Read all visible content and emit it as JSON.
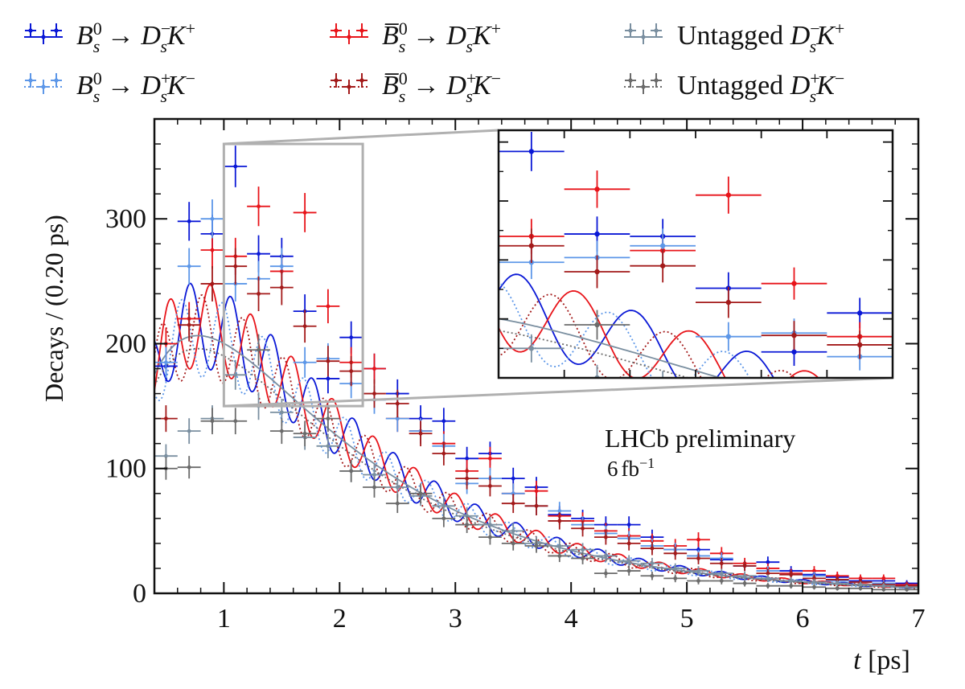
{
  "legend": {
    "entries": [
      {
        "id": "tag_bs_dmkp",
        "html": "B<tspan baseline-shift='super' font-size='22'>0</tspan><tspan dx='-11' baseline-shift='sub' font-size='22'>s</tspan> → D<tspan baseline-shift='super' font-size='22'>−</tspan><tspan dx='-11' baseline-shift='sub' font-size='22'>s</tspan>K<tspan baseline-shift='super' font-size='22'>+</tspan>",
        "color": "#0a18d6",
        "dotted": false
      },
      {
        "id": "tag_bsbar_dmkp",
        "html": "",
        "color": "#e8141a",
        "dotted": false
      },
      {
        "id": "untag_dmkp",
        "html": "",
        "color": "#7a8fa0",
        "dotted": false
      },
      {
        "id": "tag_bs_dpkm",
        "html": "",
        "color": "#5d97e8",
        "dotted": true
      },
      {
        "id": "tag_bsbar_dpkm",
        "html": "",
        "color": "#a31a1a",
        "dotted": true
      },
      {
        "id": "untag_dpkm",
        "html": "",
        "color": "#6b6b6b",
        "dotted": true
      }
    ],
    "texts": {
      "untagged": "Untagged"
    }
  },
  "annotation": {
    "line1": "LHCb preliminary",
    "line2_num": "6",
    "line2_unit": "fb",
    "line2_exp": "−1"
  },
  "colors": {
    "blue": "#0a18d6",
    "lightblue": "#5d97e8",
    "red": "#e8141a",
    "darkred": "#a31a1a",
    "slate": "#7a8fa0",
    "gray": "#6b6b6b",
    "inset_frame": "#b0b0b0"
  },
  "chart_data": {
    "type": "scatter",
    "xlabel_var": "t",
    "xlabel_unit": "[ps]",
    "ylabel": "Decays / (0.20 ps)",
    "xlim": [
      0.4,
      7.0
    ],
    "ylim": [
      0,
      380
    ],
    "xticks": [
      1,
      2,
      3,
      4,
      5,
      6,
      7
    ],
    "yticks": [
      0,
      100,
      200,
      300
    ],
    "inset": {
      "xlim": [
        1.0,
        2.2
      ],
      "ylim": [
        150,
        360
      ]
    },
    "bin_halfwidth": 0.1,
    "series": [
      {
        "key": "bs_dmkp",
        "color": "#0a18d6",
        "style": "solid",
        "points": [
          [
            0.5,
            182
          ],
          [
            0.7,
            298
          ],
          [
            0.9,
            288
          ],
          [
            1.1,
            342
          ],
          [
            1.3,
            272
          ],
          [
            1.5,
            270
          ],
          [
            1.7,
            226
          ],
          [
            1.9,
            172
          ],
          [
            2.1,
            205
          ],
          [
            2.3,
            180
          ],
          [
            2.5,
            160
          ],
          [
            2.7,
            140
          ],
          [
            2.9,
            138
          ],
          [
            3.1,
            108
          ],
          [
            3.3,
            112
          ],
          [
            3.5,
            92
          ],
          [
            3.7,
            85
          ],
          [
            3.9,
            63
          ],
          [
            4.1,
            60
          ],
          [
            4.3,
            55
          ],
          [
            4.5,
            55
          ],
          [
            4.7,
            45
          ],
          [
            4.9,
            35
          ],
          [
            5.1,
            35
          ],
          [
            5.3,
            27
          ],
          [
            5.5,
            22
          ],
          [
            5.7,
            25
          ],
          [
            5.9,
            18
          ],
          [
            6.1,
            15
          ],
          [
            6.3,
            13
          ],
          [
            6.5,
            10
          ],
          [
            6.7,
            10
          ],
          [
            6.9,
            8
          ]
        ]
      },
      {
        "key": "bsbar_dmkp",
        "color": "#e8141a",
        "style": "solid",
        "points": [
          [
            0.5,
            200
          ],
          [
            0.7,
            220
          ],
          [
            0.9,
            275
          ],
          [
            1.1,
            270
          ],
          [
            1.3,
            310
          ],
          [
            1.5,
            258
          ],
          [
            1.7,
            305
          ],
          [
            1.9,
            230
          ],
          [
            2.1,
            185
          ],
          [
            2.3,
            180
          ],
          [
            2.5,
            140
          ],
          [
            2.7,
            130
          ],
          [
            2.9,
            120
          ],
          [
            3.1,
            98
          ],
          [
            3.3,
            108
          ],
          [
            3.5,
            80
          ],
          [
            3.7,
            82
          ],
          [
            3.9,
            62
          ],
          [
            4.1,
            58
          ],
          [
            4.3,
            50
          ],
          [
            4.5,
            46
          ],
          [
            4.7,
            42
          ],
          [
            4.9,
            38
          ],
          [
            5.1,
            43
          ],
          [
            5.3,
            32
          ],
          [
            5.5,
            24
          ],
          [
            5.7,
            20
          ],
          [
            5.9,
            16
          ],
          [
            6.1,
            18
          ],
          [
            6.3,
            14
          ],
          [
            6.5,
            12
          ],
          [
            6.7,
            12
          ],
          [
            6.9,
            7
          ]
        ]
      },
      {
        "key": "bs_dpkm",
        "color": "#5d97e8",
        "style": "dotted",
        "points": [
          [
            0.5,
            185
          ],
          [
            0.7,
            262
          ],
          [
            0.9,
            300
          ],
          [
            1.1,
            248
          ],
          [
            1.3,
            252
          ],
          [
            1.5,
            262
          ],
          [
            1.7,
            185
          ],
          [
            1.9,
            188
          ],
          [
            2.1,
            168
          ],
          [
            2.3,
            155
          ],
          [
            2.5,
            140
          ],
          [
            2.7,
            130
          ],
          [
            2.9,
            118
          ],
          [
            3.1,
            88
          ],
          [
            3.3,
            92
          ],
          [
            3.5,
            80
          ],
          [
            3.7,
            70
          ],
          [
            3.9,
            66
          ],
          [
            4.1,
            55
          ],
          [
            4.3,
            48
          ],
          [
            4.5,
            44
          ],
          [
            4.7,
            38
          ],
          [
            4.9,
            35
          ],
          [
            5.1,
            30
          ],
          [
            5.3,
            28
          ],
          [
            5.5,
            22
          ],
          [
            5.7,
            18
          ],
          [
            5.9,
            15
          ],
          [
            6.1,
            14
          ],
          [
            6.3,
            10
          ],
          [
            6.5,
            9
          ],
          [
            6.7,
            8
          ],
          [
            6.9,
            6
          ]
        ]
      },
      {
        "key": "bsbar_dpkm",
        "color": "#a31a1a",
        "style": "dotted",
        "points": [
          [
            0.5,
            140
          ],
          [
            0.7,
            215
          ],
          [
            0.9,
            248
          ],
          [
            1.1,
            262
          ],
          [
            1.3,
            240
          ],
          [
            1.5,
            245
          ],
          [
            1.7,
            214
          ],
          [
            1.9,
            186
          ],
          [
            2.1,
            178
          ],
          [
            2.3,
            160
          ],
          [
            2.5,
            152
          ],
          [
            2.7,
            128
          ],
          [
            2.9,
            112
          ],
          [
            3.1,
            92
          ],
          [
            3.3,
            86
          ],
          [
            3.5,
            72
          ],
          [
            3.7,
            70
          ],
          [
            3.9,
            58
          ],
          [
            4.1,
            52
          ],
          [
            4.3,
            45
          ],
          [
            4.5,
            40
          ],
          [
            4.7,
            36
          ],
          [
            4.9,
            32
          ],
          [
            5.1,
            28
          ],
          [
            5.3,
            24
          ],
          [
            5.5,
            22
          ],
          [
            5.7,
            16
          ],
          [
            5.9,
            15
          ],
          [
            6.1,
            12
          ],
          [
            6.3,
            11
          ],
          [
            6.5,
            9
          ],
          [
            6.7,
            7
          ],
          [
            6.9,
            6
          ]
        ]
      },
      {
        "key": "untag_dmkp",
        "color": "#7a8fa0",
        "style": "solid",
        "points": [
          [
            0.5,
            110
          ],
          [
            0.7,
            130
          ],
          [
            0.9,
            140
          ],
          [
            1.1,
            175
          ],
          [
            1.3,
            150
          ],
          [
            1.5,
            145
          ],
          [
            1.7,
            125
          ],
          [
            1.9,
            118
          ],
          [
            2.1,
            98
          ],
          [
            2.3,
            95
          ],
          [
            2.5,
            85
          ],
          [
            2.7,
            78
          ],
          [
            2.9,
            70
          ],
          [
            3.1,
            62
          ],
          [
            3.3,
            55
          ],
          [
            3.5,
            50
          ],
          [
            3.7,
            40
          ],
          [
            3.9,
            38
          ],
          [
            4.1,
            35
          ],
          [
            4.3,
            30
          ],
          [
            4.5,
            26
          ],
          [
            4.7,
            24
          ],
          [
            4.9,
            20
          ],
          [
            5.1,
            18
          ],
          [
            5.3,
            16
          ],
          [
            5.5,
            14
          ],
          [
            5.7,
            12
          ],
          [
            5.9,
            10
          ],
          [
            6.1,
            9
          ],
          [
            6.3,
            8
          ],
          [
            6.5,
            7
          ],
          [
            6.7,
            6
          ],
          [
            6.9,
            5
          ]
        ]
      },
      {
        "key": "untag_dpkm",
        "color": "#6b6b6b",
        "style": "dotted",
        "points": [
          [
            0.5,
            100
          ],
          [
            0.7,
            101
          ],
          [
            0.9,
            138
          ],
          [
            1.1,
            138
          ],
          [
            1.3,
            195
          ],
          [
            1.5,
            130
          ],
          [
            1.7,
            128
          ],
          [
            1.9,
            140
          ],
          [
            2.1,
            98
          ],
          [
            2.3,
            85
          ],
          [
            2.5,
            72
          ],
          [
            2.7,
            80
          ],
          [
            2.9,
            60
          ],
          [
            3.1,
            55
          ],
          [
            3.3,
            45
          ],
          [
            3.5,
            40
          ],
          [
            3.7,
            38
          ],
          [
            3.9,
            30
          ],
          [
            4.1,
            28
          ],
          [
            4.3,
            16
          ],
          [
            4.5,
            18
          ],
          [
            4.7,
            14
          ],
          [
            4.9,
            12
          ],
          [
            5.1,
            10
          ],
          [
            5.3,
            10
          ],
          [
            5.5,
            8
          ],
          [
            5.7,
            6
          ],
          [
            5.9,
            6
          ],
          [
            6.1,
            5
          ],
          [
            6.3,
            4
          ],
          [
            6.5,
            4
          ],
          [
            6.7,
            3
          ],
          [
            6.9,
            3
          ]
        ]
      }
    ],
    "curves": [
      {
        "key": "bs_dmkp",
        "color": "#0a18d6",
        "style": "solid",
        "phase": 0.0
      },
      {
        "key": "bsbar_dmkp",
        "color": "#e8141a",
        "style": "solid",
        "phase": 3.1416
      },
      {
        "key": "bs_dpkm",
        "color": "#5d97e8",
        "style": "dotted",
        "phase": 1.3
      },
      {
        "key": "bsbar_dpkm",
        "color": "#a31a1a",
        "style": "dotted",
        "phase": 4.44
      },
      {
        "key": "untag_dmkp",
        "color": "#7a8fa0",
        "style": "solid",
        "phase": null
      },
      {
        "key": "untag_dpkm",
        "color": "#6b6b6b",
        "style": "dotted",
        "phase": null
      }
    ]
  }
}
